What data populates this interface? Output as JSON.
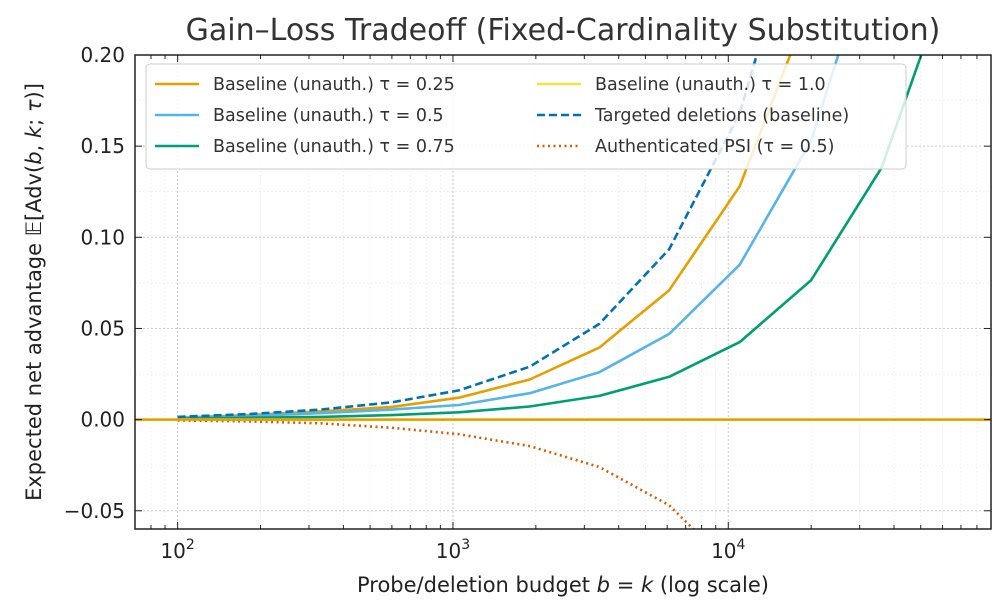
{
  "chart_data": {
    "type": "line",
    "title": "Gain–Loss Tradeoff (Fixed-Cardinality Substitution)",
    "xlabel": "Probe/deletion budget b = k (log scale)",
    "ylabel": "Expected net advantage 𝔼[Adv(b, k; τ)]",
    "x_scale": "log",
    "xlim": [
      70,
      90000
    ],
    "ylim": [
      -0.06,
      0.2
    ],
    "grid": true,
    "legend_placement": "top-left, two columns",
    "x_ticks": [
      {
        "value": 100,
        "base": "10",
        "exp": "2"
      },
      {
        "value": 1000,
        "base": "10",
        "exp": "3"
      },
      {
        "value": 10000,
        "base": "10",
        "exp": "4"
      }
    ],
    "y_ticks": [
      {
        "value": -0.05,
        "label": "−0.05"
      },
      {
        "value": 0,
        "label": "0.00"
      },
      {
        "value": 0.05,
        "label": "0.05"
      },
      {
        "value": 0.1,
        "label": "0.10"
      },
      {
        "value": 0.15,
        "label": "0.15"
      },
      {
        "value": 0.2,
        "label": "0.20"
      }
    ],
    "series": [
      {
        "name": "Baseline (unauth.) τ = 0.25",
        "color": "#E69F00",
        "dash": "solid",
        "legend_col": 0,
        "x": [
          100,
          180,
          330,
          600,
          1050,
          1900,
          3400,
          6100,
          11000,
          20000
        ],
        "y": [
          0.001,
          0.0025,
          0.0045,
          0.007,
          0.012,
          0.022,
          0.0395,
          0.071,
          0.128,
          0.23
        ]
      },
      {
        "name": "Baseline (unauth.) τ = 0.5",
        "color": "#56B4E9",
        "dash": "solid",
        "legend_col": 0,
        "x": [
          100,
          180,
          330,
          600,
          1050,
          1900,
          3400,
          6100,
          11000,
          20000,
          36000
        ],
        "y": [
          0.001,
          0.002,
          0.0035,
          0.0055,
          0.008,
          0.0145,
          0.026,
          0.047,
          0.085,
          0.153,
          0.275
        ]
      },
      {
        "name": "Baseline (unauth.) τ = 0.75",
        "color": "#009E73",
        "dash": "solid",
        "legend_col": 0,
        "x": [
          100,
          180,
          330,
          600,
          1050,
          1900,
          3400,
          6100,
          11000,
          20000,
          36000,
          65000
        ],
        "y": [
          0.0005,
          0.001,
          0.0015,
          0.0025,
          0.004,
          0.0072,
          0.013,
          0.0235,
          0.0425,
          0.0765,
          0.138,
          0.248
        ]
      },
      {
        "name": "Baseline (unauth.) τ = 1.0",
        "color": "#F0E442",
        "dash": "solid",
        "legend_col": 1,
        "x": [
          70,
          90000
        ],
        "y": [
          0,
          0
        ]
      },
      {
        "name": "Targeted deletions (baseline)",
        "color": "#0072B2",
        "dash": "dashed",
        "legend_col": 1,
        "x": [
          100,
          180,
          330,
          600,
          1050,
          1900,
          3400,
          6100,
          11000,
          20000
        ],
        "y": [
          0.0015,
          0.003,
          0.0055,
          0.0095,
          0.016,
          0.029,
          0.0525,
          0.0935,
          0.168,
          0.302
        ]
      },
      {
        "name": "Authenticated PSI (τ = 0.5)",
        "color": "#D55E00",
        "dash": "dotted",
        "legend_col": 1,
        "x": [
          100,
          180,
          330,
          600,
          1050,
          1900,
          3400,
          6100,
          11000
        ],
        "y": [
          -0.0005,
          -0.001,
          -0.002,
          -0.0045,
          -0.008,
          -0.0145,
          -0.026,
          -0.047,
          -0.085
        ]
      }
    ],
    "reference_lines": [
      {
        "type": "horizontal",
        "y": 0,
        "color": "#E69F00"
      }
    ]
  }
}
